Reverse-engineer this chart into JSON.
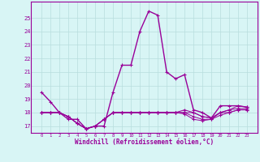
{
  "x": [
    0,
    1,
    2,
    3,
    4,
    5,
    6,
    7,
    8,
    9,
    10,
    11,
    12,
    13,
    14,
    15,
    16,
    17,
    18,
    19,
    20,
    21,
    22,
    23
  ],
  "series": [
    [
      19.5,
      18.8,
      18.0,
      17.5,
      17.5,
      16.8,
      17.0,
      17.0,
      19.5,
      21.5,
      21.5,
      24.0,
      25.5,
      25.2,
      21.0,
      20.5,
      20.8,
      18.2,
      18.0,
      17.6,
      18.5,
      18.5,
      18.5,
      18.4
    ],
    [
      18.0,
      18.0,
      18.0,
      17.7,
      17.2,
      16.8,
      17.0,
      17.5,
      18.0,
      18.0,
      18.0,
      18.0,
      18.0,
      18.0,
      18.0,
      18.0,
      18.2,
      18.0,
      17.7,
      17.6,
      18.0,
      18.2,
      18.5,
      18.4
    ],
    [
      18.0,
      18.0,
      18.0,
      17.7,
      17.2,
      16.8,
      17.0,
      17.5,
      18.0,
      18.0,
      18.0,
      18.0,
      18.0,
      18.0,
      18.0,
      18.0,
      18.0,
      18.0,
      17.7,
      17.6,
      18.0,
      18.2,
      18.3,
      18.3
    ],
    [
      18.0,
      18.0,
      18.0,
      17.7,
      17.2,
      16.8,
      17.0,
      17.5,
      18.0,
      18.0,
      18.0,
      18.0,
      18.0,
      18.0,
      18.0,
      18.0,
      18.0,
      17.7,
      17.5,
      17.5,
      18.0,
      18.0,
      18.2,
      18.2
    ],
    [
      18.0,
      18.0,
      18.0,
      17.7,
      17.2,
      16.8,
      17.0,
      17.5,
      18.0,
      18.0,
      18.0,
      18.0,
      18.0,
      18.0,
      18.0,
      18.0,
      17.9,
      17.5,
      17.4,
      17.5,
      17.8,
      18.0,
      18.2,
      18.2
    ]
  ],
  "line_color": "#990099",
  "bg_color": "#d8f5f5",
  "grid_color": "#b8dede",
  "axis_color": "#990099",
  "text_color": "#990099",
  "xlabel": "Windchill (Refroidissement éolien,°C)",
  "ylim": [
    16.5,
    26.2
  ],
  "yticks": [
    17,
    18,
    19,
    20,
    21,
    22,
    23,
    24,
    25
  ],
  "xticks": [
    0,
    1,
    2,
    3,
    4,
    5,
    6,
    7,
    8,
    9,
    10,
    11,
    12,
    13,
    14,
    15,
    16,
    17,
    18,
    19,
    20,
    21,
    22,
    23
  ]
}
